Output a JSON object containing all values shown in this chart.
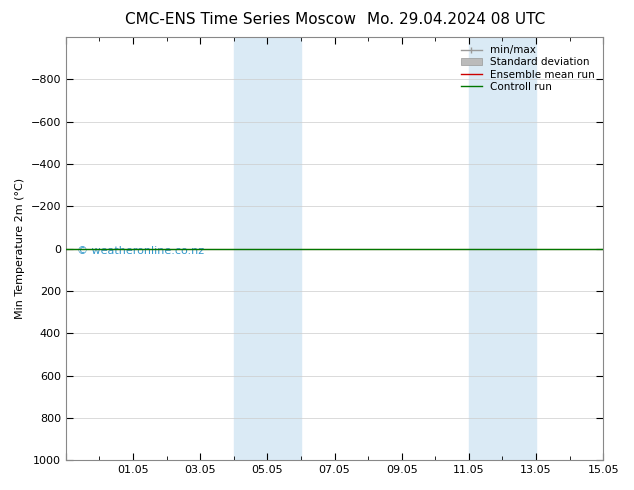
{
  "title_left": "CMC-ENS Time Series Moscow",
  "title_right": "Mo. 29.04.2024 08 UTC",
  "ylabel": "Min Temperature 2m (°C)",
  "ylim_top": -1000,
  "ylim_bottom": 1000,
  "yticks": [
    -800,
    -600,
    -400,
    -200,
    0,
    200,
    400,
    600,
    800,
    1000
  ],
  "num_days": 16,
  "xtick_positions": [
    0,
    2,
    4,
    6,
    8,
    10,
    12,
    14,
    16
  ],
  "xtick_labels": [
    "",
    "01.05",
    "03.05",
    "05.05",
    "07.05",
    "09.05",
    "11.05",
    "13.05",
    "15.05"
  ],
  "bg_color": "#ffffff",
  "plot_bg_color": "#ffffff",
  "shaded_bands": [
    {
      "xmin": 5.0,
      "xmax": 7.0
    },
    {
      "xmin": 12.0,
      "xmax": 14.0
    }
  ],
  "shaded_color": "#daeaf5",
  "grid_color": "#cccccc",
  "control_run_y": 0.0,
  "control_run_color": "#007700",
  "ensemble_mean_color": "#cc0000",
  "watermark_text": "© weatheronline.co.nz",
  "watermark_color": "#3399cc",
  "legend_labels": [
    "min/max",
    "Standard deviation",
    "Ensemble mean run",
    "Controll run"
  ],
  "legend_colors": [
    "#999999",
    "#bbbbbb",
    "#cc0000",
    "#007700"
  ],
  "font_size": 8,
  "title_font_size": 11
}
